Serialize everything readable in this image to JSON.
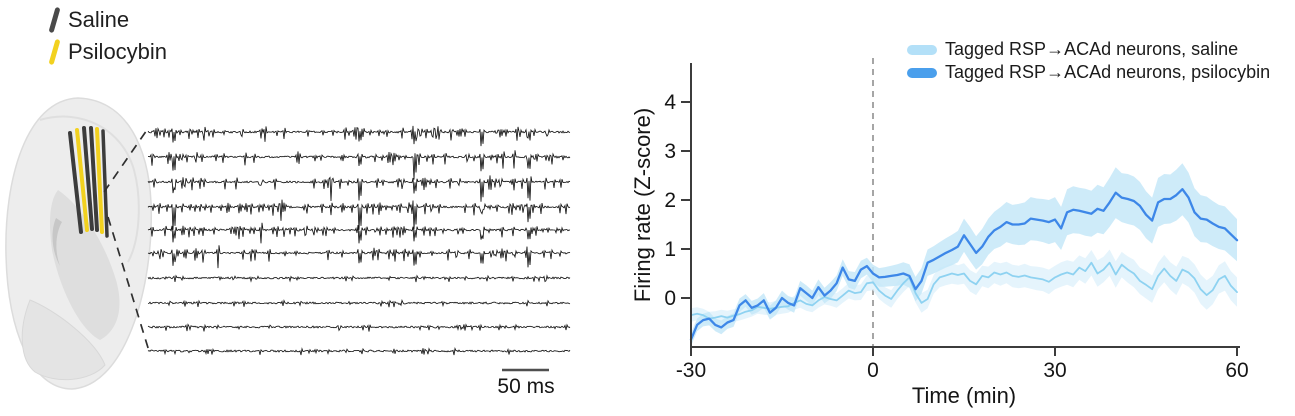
{
  "figure": {
    "injection_legend": {
      "items": [
        {
          "label": "Saline",
          "color": "#4a4a4a"
        },
        {
          "label": "Psilocybin",
          "color": "#f2d11f"
        }
      ]
    },
    "brain": {
      "probe_colors": [
        "#3c3c3c",
        "#f2d11f"
      ],
      "fill_color": "#ededed",
      "structure_color": "#d6d6d6"
    },
    "traces": {
      "n_rows": 10,
      "row_activity": [
        "high",
        "high",
        "high",
        "high",
        "high",
        "high",
        "low",
        "low",
        "low",
        "low"
      ],
      "event_positions": [
        0.06,
        0.5,
        0.63,
        0.79,
        0.9
      ],
      "scalebar_label": "50 ms",
      "trace_color": "#141414"
    }
  },
  "chart_data": {
    "type": "line",
    "title": "",
    "xlabel": "Time (min)",
    "ylabel": "Firing rate (Z-score)",
    "xlim": [
      -30,
      60
    ],
    "ylim": [
      -1,
      4.8
    ],
    "xticks": [
      -30,
      0,
      30,
      60
    ],
    "yticks": [
      0,
      1,
      2,
      3,
      4
    ],
    "grid": false,
    "legend_position": "top-right",
    "vline_x": 0,
    "vline_style": "dashed",
    "vline_color": "#909090",
    "axis_color": "#3c3c3c",
    "x": [
      -30,
      -29,
      -28,
      -27,
      -26,
      -25,
      -24,
      -23,
      -22,
      -21,
      -20,
      -19,
      -18,
      -17,
      -16,
      -15,
      -14,
      -13,
      -12,
      -11,
      -10,
      -9,
      -8,
      -7,
      -6,
      -5,
      -4,
      -3,
      -2,
      -1,
      0,
      1,
      2,
      3,
      4,
      5,
      6,
      7,
      8,
      9,
      10,
      11,
      12,
      13,
      14,
      15,
      16,
      17,
      18,
      19,
      20,
      21,
      22,
      23,
      24,
      25,
      26,
      27,
      28,
      29,
      30,
      31,
      32,
      33,
      34,
      35,
      36,
      37,
      38,
      39,
      40,
      41,
      42,
      43,
      44,
      45,
      46,
      47,
      48,
      49,
      50,
      51,
      52,
      53,
      54,
      55,
      56,
      57,
      58,
      59,
      60
    ],
    "series": [
      {
        "key": "saline",
        "name": "Tagged RSP→ACAd neurons, saline",
        "color": "#8ed2f1",
        "band_color": "#e1f2fb",
        "legend_color": "#b3e0f8",
        "values": [
          -0.35,
          -0.32,
          -0.35,
          -0.42,
          -0.4,
          -0.37,
          -0.4,
          -0.36,
          -0.33,
          -0.28,
          -0.25,
          -0.18,
          -0.2,
          -0.22,
          -0.2,
          -0.18,
          -0.17,
          -0.1,
          -0.05,
          -0.12,
          -0.15,
          -0.05,
          0.02,
          -0.02,
          -0.05,
          0.05,
          0.15,
          0.1,
          0.12,
          0.3,
          0.32,
          0.15,
          0.05,
          -0.02,
          0.15,
          0.3,
          0.42,
          0.1,
          -0.1,
          -0.02,
          0.28,
          0.42,
          0.46,
          0.5,
          0.47,
          0.5,
          0.35,
          0.28,
          0.45,
          0.42,
          0.52,
          0.48,
          0.52,
          0.45,
          0.43,
          0.46,
          0.42,
          0.4,
          0.38,
          0.33,
          0.42,
          0.48,
          0.52,
          0.48,
          0.62,
          0.55,
          0.72,
          0.5,
          0.58,
          0.72,
          0.48,
          0.68,
          0.58,
          0.5,
          0.35,
          0.27,
          0.18,
          0.45,
          0.6,
          0.45,
          0.35,
          0.58,
          0.52,
          0.4,
          0.18,
          0.06,
          0.16,
          0.38,
          0.45,
          0.25,
          0.12
        ],
        "band": [
          0.14,
          0.13,
          0.13,
          0.14,
          0.13,
          0.13,
          0.14,
          0.13,
          0.13,
          0.14,
          0.13,
          0.14,
          0.14,
          0.13,
          0.14,
          0.14,
          0.13,
          0.14,
          0.15,
          0.14,
          0.14,
          0.15,
          0.15,
          0.14,
          0.15,
          0.15,
          0.16,
          0.15,
          0.16,
          0.16,
          0.16,
          0.17,
          0.17,
          0.18,
          0.17,
          0.18,
          0.18,
          0.19,
          0.2,
          0.19,
          0.19,
          0.2,
          0.2,
          0.21,
          0.2,
          0.21,
          0.22,
          0.22,
          0.21,
          0.22,
          0.22,
          0.23,
          0.22,
          0.23,
          0.23,
          0.24,
          0.23,
          0.24,
          0.24,
          0.25,
          0.24,
          0.25,
          0.25,
          0.26,
          0.25,
          0.26,
          0.26,
          0.27,
          0.26,
          0.27,
          0.27,
          0.26,
          0.27,
          0.28,
          0.27,
          0.28,
          0.28,
          0.27,
          0.28,
          0.28,
          0.29,
          0.28,
          0.29,
          0.29,
          0.3,
          0.3,
          0.29,
          0.29,
          0.3,
          0.3,
          0.3
        ]
      },
      {
        "key": "psilocybin",
        "name": "Tagged RSP→ACAd neurons, psilocybin",
        "color": "#3d87e8",
        "band_color": "#c5e7f8",
        "legend_color": "#4a9fec",
        "values": [
          -0.85,
          -0.55,
          -0.45,
          -0.42,
          -0.55,
          -0.6,
          -0.5,
          -0.45,
          -0.15,
          -0.05,
          -0.2,
          -0.15,
          -0.05,
          -0.3,
          -0.2,
          0.0,
          -0.1,
          -0.15,
          0.2,
          0.1,
          0.0,
          0.22,
          0.05,
          0.15,
          0.3,
          0.62,
          0.38,
          0.35,
          0.58,
          0.65,
          0.5,
          0.42,
          0.43,
          0.45,
          0.47,
          0.5,
          0.45,
          0.18,
          0.35,
          0.72,
          0.78,
          0.85,
          0.92,
          0.98,
          1.05,
          1.28,
          1.1,
          0.92,
          1.05,
          1.25,
          1.38,
          1.45,
          1.55,
          1.5,
          1.5,
          1.52,
          1.62,
          1.6,
          1.58,
          1.55,
          1.6,
          1.42,
          1.75,
          1.8,
          1.78,
          1.75,
          1.72,
          1.82,
          1.78,
          1.95,
          2.15,
          2.05,
          2.02,
          1.98,
          1.88,
          1.7,
          1.58,
          1.95,
          2.02,
          2.02,
          2.1,
          2.22,
          2.05,
          1.75,
          1.62,
          1.6,
          1.52,
          1.45,
          1.42,
          1.3,
          1.18
        ],
        "band": [
          0.13,
          0.13,
          0.13,
          0.14,
          0.13,
          0.14,
          0.13,
          0.14,
          0.14,
          0.13,
          0.14,
          0.14,
          0.15,
          0.14,
          0.15,
          0.15,
          0.14,
          0.15,
          0.15,
          0.16,
          0.15,
          0.16,
          0.16,
          0.17,
          0.16,
          0.17,
          0.17,
          0.18,
          0.18,
          0.17,
          0.18,
          0.19,
          0.2,
          0.21,
          0.22,
          0.23,
          0.24,
          0.25,
          0.26,
          0.27,
          0.28,
          0.29,
          0.3,
          0.31,
          0.32,
          0.34,
          0.35,
          0.34,
          0.36,
          0.37,
          0.38,
          0.4,
          0.41,
          0.4,
          0.42,
          0.43,
          0.44,
          0.43,
          0.44,
          0.45,
          0.46,
          0.44,
          0.47,
          0.48,
          0.47,
          0.48,
          0.47,
          0.49,
          0.48,
          0.5,
          0.52,
          0.5,
          0.51,
          0.5,
          0.49,
          0.48,
          0.47,
          0.5,
          0.51,
          0.5,
          0.52,
          0.53,
          0.51,
          0.49,
          0.48,
          0.47,
          0.46,
          0.45,
          0.45,
          0.44,
          0.43
        ]
      }
    ]
  }
}
